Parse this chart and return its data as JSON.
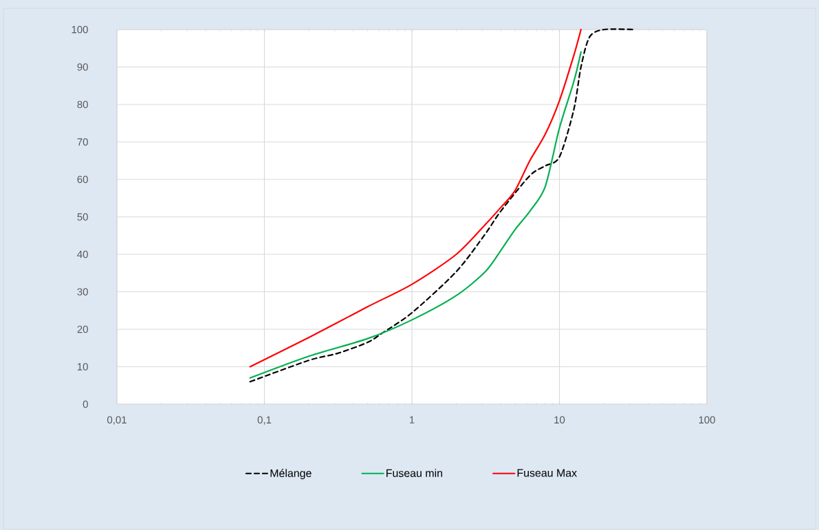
{
  "chart_data": {
    "type": "line",
    "log": "x",
    "grid": true,
    "legend": "bottom",
    "marker": "none",
    "xlim": [
      0.01,
      100
    ],
    "ylim": [
      0,
      100
    ],
    "xticks": [
      {
        "value": 0.01,
        "label": "0,01"
      },
      {
        "value": 0.1,
        "label": "0,1"
      },
      1,
      10,
      100
    ],
    "yticks": [
      0,
      10,
      20,
      30,
      40,
      50,
      60,
      70,
      80,
      90,
      100
    ],
    "series": [
      {
        "name": "Mélange",
        "color": "#000000",
        "line_style": "dashed",
        "x": [
          0.08,
          0.2,
          0.315,
          0.5,
          0.63,
          1,
          2,
          3.15,
          4,
          6.3,
          8,
          10,
          12.5,
          14,
          16,
          20,
          31.5
        ],
        "values": [
          6,
          11.7,
          13.6,
          16.5,
          19,
          24.4,
          35.4,
          45.5,
          51.5,
          61,
          63.6,
          66,
          78.5,
          90,
          98,
          100,
          100
        ]
      },
      {
        "name": "Fuseau min",
        "color": "#00b050",
        "line_style": "solid",
        "x": [
          0.08,
          0.2,
          0.5,
          1,
          2,
          3.15,
          4,
          5,
          6.3,
          8,
          10,
          12.5,
          14
        ],
        "values": [
          7,
          12.8,
          17.5,
          22.5,
          29,
          35.4,
          41,
          46.6,
          51.5,
          58,
          73.7,
          86,
          94
        ]
      },
      {
        "name": "Fuseau Max",
        "color": "#ff0000",
        "line_style": "solid",
        "x": [
          0.08,
          0.2,
          0.5,
          1,
          2,
          3.15,
          4,
          5,
          6.3,
          8,
          10,
          12.5,
          14
        ],
        "values": [
          10,
          17.8,
          26,
          32,
          40,
          48,
          52.5,
          57,
          65,
          72,
          81,
          93,
          100
        ]
      }
    ]
  }
}
